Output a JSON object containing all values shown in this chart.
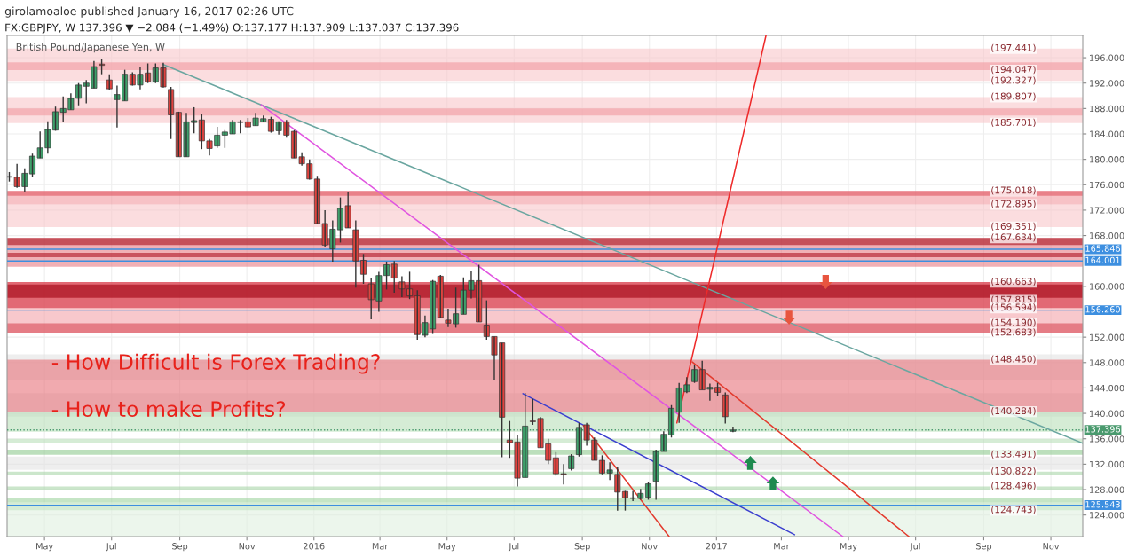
{
  "chart_data": {
    "type": "candlestick",
    "title": "British Pound/Japanese Yen, W",
    "annotations": [
      "girolamoaloe published January 16, 2017 02:26 UTC",
      "FX:GBPJPY, W 137.396 ▼ −2.084 (−1.49%) O:137.177 H:137.909 L:137.037 C:137.396",
      "- How Difficult is Forex Trading?",
      "- How to make Profits?",
      {
        "text": "(197.441)",
        "x": "2017-09-28",
        "y": 197.441
      },
      {
        "text": "(194.047)",
        "x": "2017-09-28",
        "y": 194.047
      },
      {
        "text": "(192.327)",
        "x": "2017-09-28",
        "y": 192.327
      },
      {
        "text": "(189.807)",
        "x": "2017-09-28",
        "y": 189.807
      },
      {
        "text": "(185.701)",
        "x": "2017-09-28",
        "y": 185.701
      },
      {
        "text": "(175.018)",
        "x": "2017-09-28",
        "y": 175.018
      },
      {
        "text": "(172.895)",
        "x": "2017-09-28",
        "y": 172.895
      },
      {
        "text": "(169.351)",
        "x": "2017-09-28",
        "y": 169.351
      },
      {
        "text": "(167.634)",
        "x": "2017-09-28",
        "y": 167.634
      },
      {
        "text": "(160.663)",
        "x": "2017-09-28",
        "y": 160.663
      },
      {
        "text": "(157.815)",
        "x": "2017-09-28",
        "y": 157.815
      },
      {
        "text": "(156.594)",
        "x": "2017-09-28",
        "y": 156.594
      },
      {
        "text": "(154.190)",
        "x": "2017-09-28",
        "y": 154.19
      },
      {
        "text": "(152.683)",
        "x": "2017-09-28",
        "y": 152.683
      },
      {
        "text": "(148.450)",
        "x": "2017-09-28",
        "y": 148.45
      },
      {
        "text": "(140.284)",
        "x": "2017-09-28",
        "y": 140.284
      },
      {
        "text": "(133.491)",
        "x": "2017-09-28",
        "y": 133.491
      },
      {
        "text": "(130.822)",
        "x": "2017-09-28",
        "y": 130.822
      },
      {
        "text": "(128.496)",
        "x": "2017-09-28",
        "y": 128.496
      },
      {
        "text": "(124.743)",
        "x": "2017-09-28",
        "y": 124.743
      }
    ],
    "series": [
      {
        "type": "candlestick",
        "x": [
          "2015-03-30",
          "2015-04-06",
          "2015-04-13",
          "2015-04-20",
          "2015-04-27",
          "2015-05-04",
          "2015-05-11",
          "2015-05-18",
          "2015-05-25",
          "2015-06-01",
          "2015-06-08",
          "2015-06-15",
          "2015-06-22",
          "2015-06-29",
          "2015-07-06",
          "2015-07-13",
          "2015-07-20",
          "2015-07-27",
          "2015-08-03",
          "2015-08-10",
          "2015-08-17",
          "2015-08-24",
          "2015-08-31",
          "2015-09-07",
          "2015-09-14",
          "2015-09-21",
          "2015-09-28",
          "2015-10-05",
          "2015-10-12",
          "2015-10-19",
          "2015-10-26",
          "2015-11-02",
          "2015-11-09",
          "2015-11-16",
          "2015-11-23",
          "2015-11-30",
          "2015-12-07",
          "2015-12-14",
          "2015-12-21",
          "2015-12-28",
          "2016-01-04",
          "2016-01-11",
          "2016-01-18",
          "2016-01-25",
          "2016-02-01",
          "2016-02-08",
          "2016-02-15",
          "2016-02-22",
          "2016-02-29",
          "2016-03-07",
          "2016-03-14",
          "2016-03-21",
          "2016-03-28",
          "2016-04-04",
          "2016-04-11",
          "2016-04-18",
          "2016-04-25",
          "2016-05-02",
          "2016-05-09",
          "2016-05-16",
          "2016-05-23",
          "2016-05-30",
          "2016-06-06",
          "2016-06-13",
          "2016-06-20",
          "2016-06-27",
          "2016-07-04",
          "2016-07-11",
          "2016-07-18",
          "2016-07-25",
          "2016-08-01",
          "2016-08-08",
          "2016-08-15",
          "2016-08-22",
          "2016-08-29",
          "2016-09-05",
          "2016-09-12",
          "2016-09-19",
          "2016-09-26",
          "2016-10-03",
          "2016-10-10",
          "2016-10-17",
          "2016-10-24",
          "2016-10-31",
          "2016-11-07",
          "2016-11-14",
          "2016-11-21",
          "2016-11-28",
          "2016-12-05",
          "2016-12-12",
          "2016-12-19",
          "2016-12-26",
          "2017-01-02",
          "2017-01-09",
          "2017-01-16"
        ],
        "ohlc": [
          [
            177.2,
            178.0,
            176.5,
            177.3
          ],
          [
            177.2,
            179.3,
            175.5,
            175.7
          ],
          [
            175.7,
            178.6,
            174.8,
            177.8
          ],
          [
            177.7,
            180.9,
            177.2,
            180.5
          ],
          [
            180.2,
            184.4,
            180.2,
            181.8
          ],
          [
            181.8,
            186.0,
            180.9,
            184.7
          ],
          [
            184.6,
            188.3,
            184.5,
            187.5
          ],
          [
            187.4,
            189.9,
            185.9,
            188.0
          ],
          [
            187.8,
            190.4,
            187.8,
            189.6
          ],
          [
            189.6,
            192.0,
            188.5,
            191.7
          ],
          [
            191.5,
            192.5,
            188.8,
            192.0
          ],
          [
            191.2,
            195.5,
            191.2,
            194.6
          ],
          [
            195.0,
            195.8,
            193.4,
            194.8
          ],
          [
            192.5,
            193.4,
            190.9,
            191.1
          ],
          [
            189.4,
            191.6,
            185.0,
            190.2
          ],
          [
            189.2,
            194.1,
            189.2,
            193.4
          ],
          [
            193.4,
            193.7,
            191.6,
            191.7
          ],
          [
            191.7,
            194.6,
            191.0,
            193.4
          ],
          [
            193.6,
            195.1,
            192.0,
            192.2
          ],
          [
            192.2,
            195.1,
            192.0,
            194.4
          ],
          [
            194.4,
            195.2,
            191.3,
            191.4
          ],
          [
            191.0,
            191.4,
            183.2,
            187.0
          ],
          [
            187.4,
            187.5,
            180.4,
            180.4
          ],
          [
            180.4,
            187.3,
            180.4,
            185.9
          ],
          [
            185.8,
            188.2,
            184.1,
            186.1
          ],
          [
            186.2,
            187.2,
            181.6,
            182.9
          ],
          [
            182.9,
            183.2,
            180.6,
            181.7
          ],
          [
            182.1,
            185.1,
            181.8,
            183.8
          ],
          [
            183.8,
            184.6,
            181.8,
            184.3
          ],
          [
            184.0,
            186.2,
            184.0,
            185.9
          ],
          [
            185.8,
            186.2,
            184.1,
            185.9
          ],
          [
            185.9,
            186.5,
            185.0,
            185.1
          ],
          [
            185.3,
            187.3,
            185.3,
            186.5
          ],
          [
            185.9,
            186.9,
            185.9,
            186.4
          ],
          [
            186.3,
            186.7,
            184.2,
            184.4
          ],
          [
            184.5,
            186.0,
            183.9,
            185.9
          ],
          [
            185.9,
            186.2,
            183.4,
            183.8
          ],
          [
            184.4,
            184.6,
            180.2,
            180.2
          ],
          [
            180.4,
            181.1,
            179.0,
            179.3
          ],
          [
            179.3,
            180.0,
            176.8,
            176.9
          ],
          [
            176.9,
            177.4,
            169.9,
            169.9
          ],
          [
            169.9,
            172.0,
            166.2,
            166.5
          ],
          [
            165.9,
            170.4,
            163.9,
            169.0
          ],
          [
            168.9,
            174.0,
            166.9,
            172.3
          ],
          [
            172.7,
            174.8,
            169.2,
            169.2
          ],
          [
            168.9,
            170.4,
            159.8,
            164.0
          ],
          [
            164.1,
            165.1,
            160.4,
            161.9
          ],
          [
            160.4,
            161.3,
            154.8,
            157.9
          ],
          [
            157.7,
            162.3,
            156.0,
            161.7
          ],
          [
            161.7,
            163.9,
            159.5,
            163.4
          ],
          [
            163.5,
            164.0,
            159.0,
            161.3
          ],
          [
            160.7,
            161.6,
            158.3,
            159.6
          ],
          [
            159.6,
            162.3,
            158.0,
            158.5
          ],
          [
            158.5,
            159.4,
            151.6,
            152.4
          ],
          [
            152.3,
            155.4,
            152.0,
            154.3
          ],
          [
            153.3,
            161.0,
            152.5,
            160.8
          ],
          [
            161.6,
            161.8,
            155.1,
            155.1
          ],
          [
            154.7,
            156.5,
            153.6,
            154.2
          ],
          [
            154.1,
            159.8,
            153.5,
            155.7
          ],
          [
            155.6,
            161.4,
            155.6,
            159.4
          ],
          [
            159.4,
            162.5,
            158.1,
            160.9
          ],
          [
            160.9,
            163.4,
            154.4,
            154.4
          ],
          [
            153.9,
            157.8,
            151.6,
            152.1
          ],
          [
            152.1,
            152.1,
            145.3,
            149.2
          ],
          [
            151.1,
            151.1,
            133.1,
            139.4
          ],
          [
            135.8,
            138.8,
            133.0,
            135.4
          ],
          [
            135.5,
            136.6,
            128.5,
            129.8
          ],
          [
            129.9,
            143.2,
            129.9,
            138.0
          ],
          [
            138.8,
            142.3,
            138.2,
            138.7
          ],
          [
            139.2,
            139.4,
            134.6,
            134.6
          ],
          [
            135.2,
            136.0,
            132.0,
            132.6
          ],
          [
            133.0,
            133.9,
            130.2,
            130.5
          ],
          [
            130.5,
            132.0,
            128.8,
            130.4
          ],
          [
            131.3,
            133.6,
            131.0,
            133.3
          ],
          [
            133.5,
            138.5,
            133.2,
            137.8
          ],
          [
            138.2,
            138.5,
            134.9,
            135.8
          ],
          [
            135.8,
            136.2,
            132.6,
            132.6
          ],
          [
            132.6,
            133.4,
            130.4,
            130.6
          ],
          [
            130.6,
            132.3,
            129.5,
            131.1
          ],
          [
            130.4,
            131.6,
            124.7,
            127.6
          ],
          [
            127.7,
            127.8,
            124.7,
            126.7
          ],
          [
            126.6,
            127.8,
            126.2,
            126.7
          ],
          [
            126.6,
            128.1,
            126.4,
            127.4
          ],
          [
            126.8,
            129.2,
            126.4,
            128.9
          ],
          [
            129.3,
            134.3,
            126.4,
            134.0
          ],
          [
            134.0,
            137.2,
            134.0,
            136.7
          ],
          [
            136.6,
            141.3,
            136.2,
            140.8
          ],
          [
            140.2,
            144.8,
            138.5,
            144.0
          ],
          [
            143.4,
            145.7,
            143.2,
            144.5
          ],
          [
            145.0,
            147.6,
            144.8,
            146.9
          ],
          [
            146.9,
            148.3,
            143.7,
            143.7
          ],
          [
            143.8,
            144.7,
            142.0,
            144.1
          ],
          [
            144.1,
            144.8,
            142.7,
            143.3
          ],
          [
            142.9,
            143.3,
            138.4,
            139.48
          ],
          [
            137.177,
            137.909,
            137.037,
            137.396
          ]
        ],
        "colors": [
          "#3fa06b",
          "#e0433f",
          "#3fa06b",
          "#3fa06b",
          "#3fa06b",
          "#3fa06b",
          "#3fa06b",
          "#3fa06b",
          "#3fa06b",
          "#3fa06b",
          "#3fa06b",
          "#3fa06b",
          "#e0433f",
          "#e0433f",
          "#3fa06b",
          "#3fa06b",
          "#e0433f",
          "#3fa06b",
          "#e0433f",
          "#3fa06b",
          "#e0433f",
          "#e0433f",
          "#e0433f",
          "#3fa06b",
          "#3fa06b",
          "#e0433f",
          "#e0433f",
          "#3fa06b",
          "#3fa06b",
          "#3fa06b",
          "#3fa06b",
          "#e0433f",
          "#3fa06b",
          "#3fa06b",
          "#e0433f",
          "#3fa06b",
          "#e0433f",
          "#e0433f",
          "#e0433f",
          "#e0433f",
          "#e0433f",
          "#e0433f",
          "#3fa06b",
          "#3fa06b",
          "#e0433f",
          "#e0433f",
          "#e0433f",
          "#e0433f",
          "#3fa06b",
          "#3fa06b",
          "#e0433f",
          "#e0433f",
          "#e0433f",
          "#e0433f",
          "#3fa06b",
          "#3fa06b",
          "#e0433f",
          "#e0433f",
          "#3fa06b",
          "#3fa06b",
          "#3fa06b",
          "#e0433f",
          "#e0433f",
          "#e0433f",
          "#e0433f",
          "#e0433f",
          "#e0433f",
          "#3fa06b",
          "#e0433f",
          "#e0433f",
          "#e0433f",
          "#e0433f",
          "#e0433f",
          "#3fa06b",
          "#3fa06b",
          "#e0433f",
          "#e0433f",
          "#e0433f",
          "#3fa06b",
          "#e0433f",
          "#e0433f",
          "#3fa06b",
          "#3fa06b",
          "#3fa06b",
          "#3fa06b",
          "#3fa06b",
          "#3fa06b",
          "#3fa06b",
          "#3fa06b",
          "#3fa06b",
          "#e0433f",
          "#3fa06b",
          "#e0433f",
          "#e0433f",
          "#3fa06b"
        ]
      },
      {
        "type": "line",
        "x": [
          "2015-08-16",
          "2017-11-30"
        ],
        "values": [
          195.0,
          135.3
        ],
        "color": "#6aa6a0"
      },
      {
        "type": "line",
        "x": [
          "2015-11-14",
          "2017-04-26"
        ],
        "values": [
          188.6,
          120.6
        ],
        "color": "#e055e0"
      },
      {
        "type": "line",
        "x": [
          "2016-07-09",
          "2017-03-13"
        ],
        "values": [
          143.1,
          120.9
        ],
        "color": "#3b3fcf"
      },
      {
        "type": "line",
        "x": [
          "2016-09-02",
          "2016-11-19"
        ],
        "values": [
          138.1,
          120.6
        ],
        "color": "#e33b2e"
      },
      {
        "type": "line",
        "x": [
          "2016-11-26",
          "2017-02-15"
        ],
        "values": [
          138.5,
          199.5
        ],
        "color": "#ee2a2a"
      },
      {
        "type": "line",
        "x": [
          "2016-12-10",
          "2017-06-25"
        ],
        "values": [
          148.1,
          120.6
        ],
        "color": "#e33b2e"
      }
    ],
    "bands": [
      {
        "axis": "y",
        "from": 192.327,
        "to": 197.441,
        "color": "#f8c6c9"
      },
      {
        "axis": "y",
        "from": 194.047,
        "to": 195.28,
        "color": "#f19aa0"
      },
      {
        "axis": "y",
        "from": 185.701,
        "to": 189.807,
        "color": "#f8c6c9"
      },
      {
        "axis": "y",
        "from": 186.9,
        "to": 188.0,
        "color": "#f19aa0"
      },
      {
        "axis": "y",
        "from": 169.351,
        "to": 172.895,
        "color": "#f8c6c9"
      },
      {
        "axis": "y",
        "from": 172.895,
        "to": 175.018,
        "color": "#f19aa0"
      },
      {
        "axis": "y",
        "from": 174.263,
        "to": 175.018,
        "color": "#e05560"
      },
      {
        "axis": "y",
        "from": 163.082,
        "to": 167.634,
        "color": "#e77b83"
      },
      {
        "axis": "y",
        "from": 166.5,
        "to": 167.634,
        "color": "#a8101e"
      },
      {
        "axis": "y",
        "from": 164.6,
        "to": 165.3,
        "color": "#b01525"
      },
      {
        "axis": "y",
        "from": 152.683,
        "to": 160.663,
        "color": "#f3a3aa"
      },
      {
        "axis": "y",
        "from": 156.594,
        "to": 160.663,
        "color": "#d42a38"
      },
      {
        "axis": "y",
        "from": 158.2,
        "to": 160.3,
        "color": "#a00010"
      },
      {
        "axis": "y",
        "from": 152.683,
        "to": 154.19,
        "color": "#d84a55"
      },
      {
        "axis": "y",
        "from": 145.3,
        "to": 149.3,
        "color": "#e3e3e3"
      },
      {
        "axis": "y",
        "from": 139.5,
        "to": 143.2,
        "color": "#e3e3e3"
      },
      {
        "axis": "y",
        "from": 140.284,
        "to": 148.45,
        "color": "#e8727a"
      },
      {
        "axis": "y",
        "from": 137.1,
        "to": 140.284,
        "color": "#b9dfb9"
      },
      {
        "axis": "y",
        "from": 135.3,
        "to": 136.0,
        "color": "#b9dfb9"
      },
      {
        "axis": "y",
        "from": 133.491,
        "to": 134.3,
        "color": "#8fca8f"
      },
      {
        "axis": "y",
        "from": 131.1,
        "to": 133.2,
        "color": "#e3e3e3"
      },
      {
        "axis": "y",
        "from": 130.286,
        "to": 130.822,
        "color": "#a9d6a9"
      },
      {
        "axis": "y",
        "from": 128.0,
        "to": 128.496,
        "color": "#a9d6a9"
      },
      {
        "axis": "y",
        "from": 124.743,
        "to": 126.617,
        "color": "#9fd49f"
      },
      {
        "axis": "y",
        "from": 120.6,
        "to": 126.0,
        "color": "#dff0df"
      }
    ],
    "ref_lines": [
      {
        "axis": "y",
        "value": 165.846,
        "label": "165.846",
        "color": "#3d8fe0",
        "line_style": "solid"
      },
      {
        "axis": "y",
        "value": 164.001,
        "label": "164.001",
        "color": "#3d8fe0",
        "line_style": "solid"
      },
      {
        "axis": "y",
        "value": 156.26,
        "label": "156.260",
        "color": "#3d8fe0",
        "line_style": "solid"
      },
      {
        "axis": "y",
        "value": 137.396,
        "label": "137.396",
        "color": "#4a9a6e",
        "line_style": "dotted"
      },
      {
        "axis": "y",
        "value": 125.543,
        "label": "125.543",
        "color": "#3d8fe0",
        "line_style": "solid"
      }
    ],
    "xlim": [
      "2015-03-28",
      "2017-11-30"
    ],
    "xticks": [
      {
        "value": "2015-05-01",
        "label": "May"
      },
      {
        "value": "2015-07-01",
        "label": "Jul"
      },
      {
        "value": "2015-09-01",
        "label": "Sep"
      },
      {
        "value": "2015-11-01",
        "label": "Nov"
      },
      {
        "value": "2016-01-01",
        "label": "2016"
      },
      {
        "value": "2016-03-01",
        "label": "Mar"
      },
      {
        "value": "2016-05-01",
        "label": "May"
      },
      {
        "value": "2016-07-01",
        "label": "Jul"
      },
      {
        "value": "2016-09-01",
        "label": "Sep"
      },
      {
        "value": "2016-11-01",
        "label": "Nov"
      },
      {
        "value": "2017-01-01",
        "label": "2017"
      },
      {
        "value": "2017-03-01",
        "label": "Mar"
      },
      {
        "value": "2017-05-01",
        "label": "May"
      },
      {
        "value": "2017-07-01",
        "label": "Jul"
      },
      {
        "value": "2017-09-01",
        "label": "Sep"
      },
      {
        "value": "2017-11-01",
        "label": "Nov"
      }
    ],
    "ylim": [
      120.6,
      199.5
    ],
    "yticks": [
      {
        "value": 124,
        "label": "124.000"
      },
      {
        "value": 128,
        "label": "128.000"
      },
      {
        "value": 132,
        "label": "132.000"
      },
      {
        "value": 136,
        "label": "136.000"
      },
      {
        "value": 140,
        "label": "140.000"
      },
      {
        "value": 144,
        "label": "144.000"
      },
      {
        "value": 148,
        "label": "148.000"
      },
      {
        "value": 152,
        "label": "152.000"
      },
      {
        "value": 160,
        "label": "160.000"
      },
      {
        "value": 168,
        "label": "168.000"
      },
      {
        "value": 172,
        "label": "172.000"
      },
      {
        "value": 176,
        "label": "176.000"
      },
      {
        "value": 180,
        "label": "180.000"
      },
      {
        "value": 184,
        "label": "184.000"
      },
      {
        "value": 188,
        "label": "188.000"
      },
      {
        "value": 192,
        "label": "192.000"
      },
      {
        "value": 196,
        "label": "196.000"
      }
    ],
    "grid": true
  }
}
